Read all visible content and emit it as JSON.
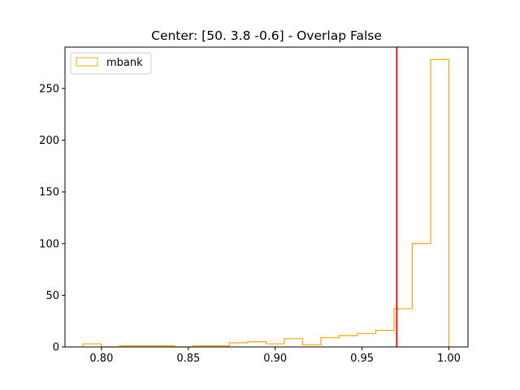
{
  "chart_data": {
    "type": "histogram",
    "title": "Center: [50.   3.8 -0.6] - Overlap False",
    "xlabel": "",
    "ylabel": "",
    "xlim": [
      0.779,
      1.011
    ],
    "ylim": [
      0,
      290
    ],
    "x_ticks": [
      0.8,
      0.85,
      0.9,
      0.95,
      1.0
    ],
    "x_tick_labels": [
      "0.80",
      "0.85",
      "0.90",
      "0.95",
      "1.00"
    ],
    "y_ticks": [
      0,
      50,
      100,
      150,
      200,
      250
    ],
    "y_tick_labels": [
      "0",
      "50",
      "100",
      "150",
      "200",
      "250"
    ],
    "grid": false,
    "legend": {
      "position": "top-left"
    },
    "series": [
      {
        "name": "mbank",
        "histtype": "step",
        "color": "#ffa500",
        "bin_edges": [
          0.7894,
          0.7999,
          0.8105,
          0.821,
          0.8315,
          0.842,
          0.8526,
          0.8631,
          0.8736,
          0.8842,
          0.8947,
          0.9052,
          0.9158,
          0.9263,
          0.9368,
          0.9474,
          0.9579,
          0.9684,
          0.9789,
          0.9895,
          1.0
        ],
        "counts": [
          3,
          0,
          1,
          1,
          1,
          0,
          1,
          1,
          4,
          5,
          3,
          8,
          2,
          9,
          11,
          13,
          16,
          37,
          100,
          278
        ]
      }
    ],
    "reference_line": {
      "x": 0.97,
      "color": "#ff0000"
    }
  }
}
